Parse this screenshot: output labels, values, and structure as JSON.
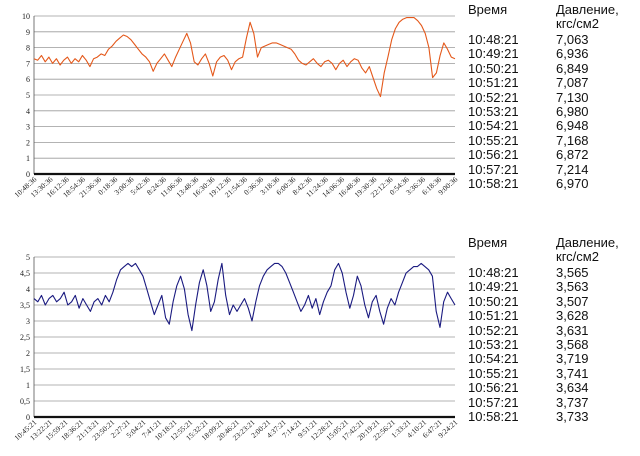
{
  "tables": [
    {
      "header": {
        "time": "Время",
        "pressure": "Давление, кгс/см2"
      },
      "rows": [
        {
          "time": "10:48:21",
          "value": "7,063"
        },
        {
          "time": "10:49:21",
          "value": "6,936"
        },
        {
          "time": "10:50:21",
          "value": "6,849"
        },
        {
          "time": "10:51:21",
          "value": "7,087"
        },
        {
          "time": "10:52:21",
          "value": "7,130"
        },
        {
          "time": "10:53:21",
          "value": "6,980"
        },
        {
          "time": "10:54:21",
          "value": "6,948"
        },
        {
          "time": "10:55:21",
          "value": "7,168"
        },
        {
          "time": "10:56:21",
          "value": "6,872"
        },
        {
          "time": "10:57:21",
          "value": "7,214"
        },
        {
          "time": "10:58:21",
          "value": "6,970"
        }
      ]
    },
    {
      "header": {
        "time": "Время",
        "pressure": "Давление, кгс/см2"
      },
      "rows": [
        {
          "time": "10:48:21",
          "value": "3,565"
        },
        {
          "time": "10:49:21",
          "value": "3,563"
        },
        {
          "time": "10:50:21",
          "value": "3,507"
        },
        {
          "time": "10:51:21",
          "value": "3,628"
        },
        {
          "time": "10:52:21",
          "value": "3,631"
        },
        {
          "time": "10:53:21",
          "value": "3,568"
        },
        {
          "time": "10:54:21",
          "value": "3,719"
        },
        {
          "time": "10:55:21",
          "value": "3,741"
        },
        {
          "time": "10:56:21",
          "value": "3,634"
        },
        {
          "time": "10:57:21",
          "value": "3,737"
        },
        {
          "time": "10:58:21",
          "value": "3,733"
        }
      ]
    }
  ],
  "chart_data": [
    {
      "type": "line",
      "title": "",
      "xlabel": "",
      "ylabel": "",
      "ylim": [
        0,
        10
      ],
      "yticks": [
        0,
        1,
        2,
        3,
        4,
        5,
        6,
        7,
        8,
        9,
        10
      ],
      "grid": true,
      "color": "#e4581a",
      "xticks": [
        "10:48:36",
        "13:30:36",
        "16:12:36",
        "18:54:36",
        "21:36:36",
        "0:18:36",
        "3:00:36",
        "5:42:36",
        "8:24:36",
        "11:06:36",
        "13:48:36",
        "16:30:36",
        "19:12:36",
        "21:54:36",
        "0:36:36",
        "3:18:36",
        "6:00:36",
        "8:42:36",
        "11:24:36",
        "14:06:36",
        "16:48:36",
        "19:30:36",
        "22:12:36",
        "0:54:36",
        "3:36:36",
        "6:18:36",
        "9:00:36"
      ],
      "series": [
        {
          "values": [
            7.3,
            7.2,
            7.5,
            7.1,
            7.4,
            7.0,
            7.3,
            6.9,
            7.2,
            7.4,
            7.0,
            7.3,
            7.1,
            7.5,
            7.2,
            6.8,
            7.3,
            7.4,
            7.6,
            7.5,
            7.9,
            8.1,
            8.4,
            8.6,
            8.8,
            8.7,
            8.5,
            8.2,
            7.9,
            7.6,
            7.4,
            7.1,
            6.5,
            7.0,
            7.3,
            7.6,
            7.2,
            6.8,
            7.4,
            7.9,
            8.4,
            8.9,
            8.3,
            7.1,
            6.9,
            7.3,
            7.6,
            7.0,
            6.2,
            7.1,
            7.4,
            7.5,
            7.2,
            6.6,
            7.1,
            7.3,
            7.4,
            8.6,
            9.6,
            8.9,
            7.4,
            8.0,
            8.1,
            8.2,
            8.3,
            8.3,
            8.2,
            8.1,
            8.0,
            7.9,
            7.6,
            7.2,
            7.0,
            6.9,
            7.1,
            7.3,
            7.0,
            6.8,
            7.1,
            7.2,
            7.0,
            6.6,
            7.0,
            7.2,
            6.8,
            7.1,
            7.3,
            7.2,
            6.7,
            6.4,
            6.8,
            6.1,
            5.4,
            4.9,
            6.4,
            7.4,
            8.5,
            9.2,
            9.6,
            9.8,
            9.9,
            9.9,
            9.9,
            9.7,
            9.4,
            8.9,
            8.0,
            6.1,
            6.4,
            7.5,
            8.3,
            7.9,
            7.4,
            7.3
          ]
        }
      ]
    },
    {
      "type": "line",
      "title": "",
      "xlabel": "",
      "ylabel": "",
      "ylim": [
        0,
        5
      ],
      "yticks": [
        0,
        0.5,
        1,
        1.5,
        2,
        2.5,
        3,
        3.5,
        4,
        4.5,
        5
      ],
      "yticklabels": [
        "0",
        "0,5",
        "1",
        "1,5",
        "2",
        "2,5",
        "3",
        "3,5",
        "4",
        "4,5",
        "5"
      ],
      "grid": true,
      "color": "#1a1a80",
      "xticks": [
        "10:45:21",
        "13:22:21",
        "15:59:21",
        "18:36:21",
        "21:13:21",
        "23:50:21",
        "2:27:21",
        "5:04:21",
        "7:41:21",
        "10:18:21",
        "12:55:21",
        "15:32:21",
        "18:09:21",
        "20:46:21",
        "23:23:21",
        "2:00:21",
        "4:37:21",
        "7:14:21",
        "9:51:21",
        "12:28:21",
        "15:05:21",
        "17:42:21",
        "20:19:21",
        "22:56:21",
        "1:33:21",
        "4:10:21",
        "6:47:21",
        "9:24:21"
      ],
      "series": [
        {
          "values": [
            3.7,
            3.6,
            3.8,
            3.5,
            3.7,
            3.8,
            3.6,
            3.7,
            3.9,
            3.5,
            3.6,
            3.8,
            3.4,
            3.7,
            3.5,
            3.3,
            3.6,
            3.7,
            3.5,
            3.8,
            3.6,
            3.9,
            4.3,
            4.6,
            4.7,
            4.8,
            4.7,
            4.8,
            4.6,
            4.4,
            4.0,
            3.6,
            3.2,
            3.5,
            3.8,
            3.1,
            2.9,
            3.6,
            4.1,
            4.4,
            4.0,
            3.2,
            2.7,
            3.5,
            4.2,
            4.6,
            4.1,
            3.3,
            3.6,
            4.3,
            4.8,
            3.8,
            3.2,
            3.5,
            3.3,
            3.5,
            3.7,
            3.4,
            3.0,
            3.6,
            4.1,
            4.4,
            4.6,
            4.7,
            4.8,
            4.8,
            4.7,
            4.5,
            4.2,
            3.9,
            3.6,
            3.3,
            3.5,
            3.8,
            3.4,
            3.7,
            3.2,
            3.6,
            3.9,
            4.1,
            4.6,
            4.8,
            4.5,
            3.9,
            3.4,
            3.8,
            4.4,
            4.1,
            3.5,
            3.1,
            3.6,
            3.8,
            3.3,
            2.9,
            3.4,
            3.7,
            3.5,
            3.9,
            4.2,
            4.5,
            4.6,
            4.7,
            4.7,
            4.8,
            4.7,
            4.6,
            4.4,
            3.3,
            2.8,
            3.6,
            3.9,
            3.7,
            3.5
          ]
        }
      ]
    }
  ]
}
